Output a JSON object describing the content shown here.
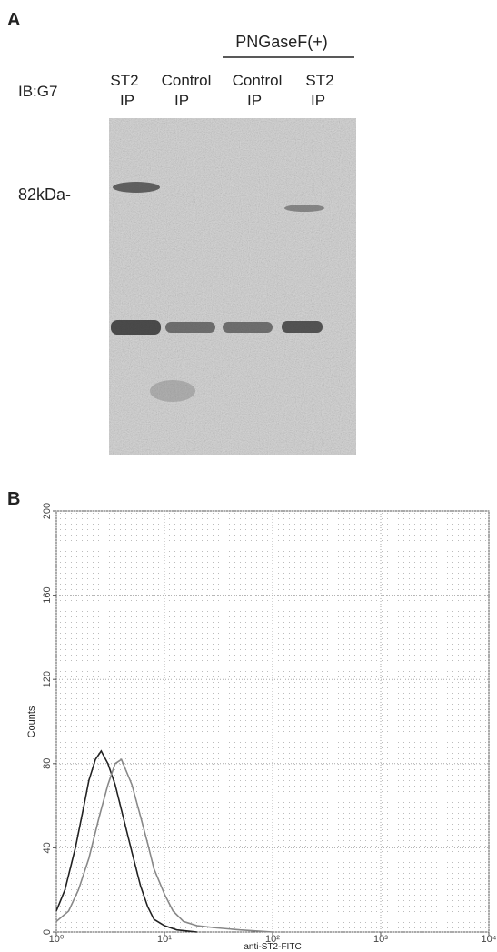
{
  "panel_a": {
    "label": "A",
    "antibody": "IB:G7",
    "treatment": "PNGaseF(+)",
    "marker": "82kDa-",
    "lanes": [
      {
        "name": "ST2",
        "sub": "IP"
      },
      {
        "name": "Control",
        "sub": "IP"
      },
      {
        "name": "Control",
        "sub": "IP"
      },
      {
        "name": "ST2",
        "sub": "IP"
      }
    ]
  },
  "panel_b": {
    "label": "B"
  },
  "chart_data": {
    "type": "line",
    "ylabel": "Counts",
    "xlabel": "anti-ST2-FITC",
    "xscale": "log",
    "xlim": [
      1,
      10000
    ],
    "ylim": [
      0,
      200
    ],
    "xticks": [
      {
        "value": 1,
        "label": "10⁰"
      },
      {
        "value": 10,
        "label": "10¹"
      },
      {
        "value": 100,
        "label": "10²"
      },
      {
        "value": 1000,
        "label": "10³"
      },
      {
        "value": 10000,
        "label": "10⁴"
      }
    ],
    "yticks": [
      0,
      40,
      80,
      120,
      160,
      200
    ],
    "grid": true,
    "series": [
      {
        "color": "#222222",
        "x": [
          1,
          1.2,
          1.5,
          1.8,
          2,
          2.3,
          2.6,
          3,
          3.5,
          4,
          5,
          6,
          7,
          8,
          10,
          13,
          20
        ],
        "values": [
          10,
          20,
          40,
          60,
          72,
          82,
          86,
          80,
          70,
          58,
          38,
          22,
          12,
          6,
          3,
          1,
          0
        ]
      },
      {
        "color": "#888888",
        "x": [
          1,
          1.3,
          1.6,
          2,
          2.5,
          3,
          3.5,
          4,
          5,
          6,
          7,
          8,
          10,
          12,
          15,
          20,
          30,
          50,
          100
        ],
        "values": [
          5,
          10,
          20,
          35,
          55,
          70,
          80,
          82,
          70,
          55,
          42,
          30,
          18,
          10,
          5,
          3,
          2,
          1,
          0
        ]
      }
    ]
  }
}
